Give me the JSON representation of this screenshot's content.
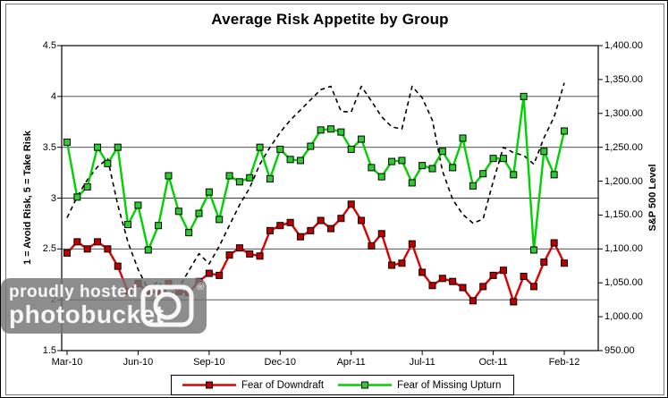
{
  "title": "Average Risk Appetite by Group",
  "watermark": {
    "line1": "proudly hosted on",
    "line2": "photobucket",
    "registered": "®"
  },
  "chart_data": {
    "type": "line",
    "title": "Average Risk Appetite by Group",
    "grid": "horizontal",
    "legend_position": "bottom",
    "left_axis": {
      "label": "1 = Avoid Risk, 5 = Take Risk",
      "min": 1.5,
      "max": 4.5,
      "tick_labels": [
        "4.5",
        "4",
        "3.5",
        "3",
        "2.5",
        "2",
        "1.5"
      ],
      "tick_values": [
        4.5,
        4,
        3.5,
        3,
        2.5,
        2,
        1.5
      ]
    },
    "right_axis": {
      "label": "S&P 500 Level",
      "min": 950,
      "max": 1400,
      "tick_labels": [
        "1,400.00",
        "1,350.00",
        "1,300.00",
        "1,250.00",
        "1,200.00",
        "1,150.00",
        "1,100.00",
        "1,050.00",
        "1,000.00",
        "950.00"
      ],
      "tick_values": [
        1400,
        1350,
        1300,
        1250,
        1200,
        1150,
        1100,
        1050,
        1000,
        950
      ]
    },
    "x_axis": {
      "tick_labels": [
        "Mar-10",
        "Jun-10",
        "Sep-10",
        "Dec-10",
        "Apr-11",
        "Jul-11",
        "Oct-11",
        "Feb-12"
      ],
      "tick_slots": [
        0,
        7,
        14,
        21,
        28,
        35,
        42,
        49
      ],
      "n_points": 50
    },
    "series": [
      {
        "name": "S&P 500",
        "axis": "right",
        "color": "#000000",
        "line_style": "dashed",
        "marker": "none",
        "in_legend": false,
        "values": [
          1146,
          1177,
          1202,
          1221,
          1233,
          1165,
          1110,
          1070,
          1040,
          1052,
          1032,
          1042,
          1068,
          1093,
          1078,
          1104,
          1135,
          1165,
          1190,
          1225,
          1250,
          1272,
          1290,
          1305,
          1320,
          1335,
          1340,
          1303,
          1302,
          1340,
          1318,
          1295,
          1280,
          1277,
          1340,
          1323,
          1290,
          1215,
          1173,
          1151,
          1138,
          1144,
          1200,
          1250,
          1242,
          1238,
          1225,
          1264,
          1295,
          1345
        ]
      },
      {
        "name": "Fear of Downdraft",
        "axis": "left",
        "color": "#dd0000",
        "marker_color": "#c00000",
        "line_style": "solid",
        "marker": "square",
        "in_legend": true,
        "values": [
          2.46,
          2.57,
          2.5,
          2.57,
          2.5,
          2.33,
          2.08,
          2.16,
          2.07,
          2.08,
          2.16,
          2.08,
          2.07,
          2.18,
          2.26,
          2.24,
          2.44,
          2.51,
          2.45,
          2.43,
          2.68,
          2.73,
          2.76,
          2.62,
          2.68,
          2.78,
          2.7,
          2.8,
          2.94,
          2.78,
          2.53,
          2.65,
          2.34,
          2.36,
          2.55,
          2.27,
          2.14,
          2.21,
          2.18,
          2.12,
          1.99,
          2.13,
          2.24,
          2.29,
          1.98,
          2.23,
          2.13,
          2.37,
          2.56,
          2.36
        ]
      },
      {
        "name": "Fear of Missing Upturn",
        "axis": "left",
        "color": "#00d200",
        "marker_color": "#2ecc2e",
        "line_style": "solid",
        "marker": "square",
        "in_legend": true,
        "values": [
          3.55,
          3.01,
          3.11,
          3.5,
          3.34,
          3.5,
          2.74,
          2.93,
          2.49,
          2.73,
          3.22,
          2.87,
          2.66,
          2.85,
          3.06,
          2.79,
          3.22,
          3.16,
          3.2,
          3.5,
          3.19,
          3.48,
          3.38,
          3.37,
          3.51,
          3.67,
          3.68,
          3.65,
          3.48,
          3.58,
          3.3,
          3.21,
          3.36,
          3.37,
          3.15,
          3.32,
          3.29,
          3.46,
          3.3,
          3.59,
          3.12,
          3.24,
          3.39,
          3.39,
          3.23,
          4.0,
          2.49,
          3.46,
          3.23,
          3.66
        ]
      }
    ]
  }
}
